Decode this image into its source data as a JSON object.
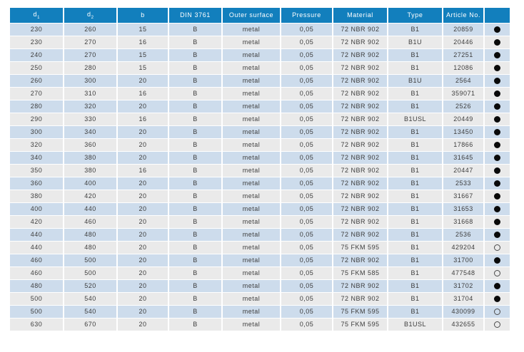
{
  "colors": {
    "header_bg": "#127fbd",
    "header_text": "#ffffff",
    "row_blue": "#cddcec",
    "row_gray": "#eaeaea",
    "cell_text": "#3d3d3d",
    "dot_color": "#0a0a0a"
  },
  "table": {
    "columns": [
      {
        "key": "d1",
        "label": "d",
        "sub": "1"
      },
      {
        "key": "d2",
        "label": "d",
        "sub": "2"
      },
      {
        "key": "b",
        "label": "b"
      },
      {
        "key": "din",
        "label": "DIN 3761"
      },
      {
        "key": "outer",
        "label": "Outer surface"
      },
      {
        "key": "pressure",
        "label": "Pressure"
      },
      {
        "key": "material",
        "label": "Material"
      },
      {
        "key": "type",
        "label": "Type"
      },
      {
        "key": "article",
        "label": "Article No."
      },
      {
        "key": "dot",
        "label": ""
      }
    ],
    "rows": [
      {
        "d1": "230",
        "d2": "260",
        "b": "15",
        "din": "B",
        "outer": "metal",
        "pressure": "0,05",
        "material": "72 NBR 902",
        "type": "B1",
        "article": "20859",
        "dot": "filled"
      },
      {
        "d1": "230",
        "d2": "270",
        "b": "16",
        "din": "B",
        "outer": "metal",
        "pressure": "0,05",
        "material": "72 NBR 902",
        "type": "B1U",
        "article": "20446",
        "dot": "filled"
      },
      {
        "d1": "240",
        "d2": "270",
        "b": "15",
        "din": "B",
        "outer": "metal",
        "pressure": "0,05",
        "material": "72 NBR 902",
        "type": "B1",
        "article": "27251",
        "dot": "filled"
      },
      {
        "d1": "250",
        "d2": "280",
        "b": "15",
        "din": "B",
        "outer": "metal",
        "pressure": "0,05",
        "material": "72 NBR 902",
        "type": "B1",
        "article": "12086",
        "dot": "filled"
      },
      {
        "d1": "260",
        "d2": "300",
        "b": "20",
        "din": "B",
        "outer": "metal",
        "pressure": "0,05",
        "material": "72 NBR 902",
        "type": "B1U",
        "article": "2564",
        "dot": "filled"
      },
      {
        "d1": "270",
        "d2": "310",
        "b": "16",
        "din": "B",
        "outer": "metal",
        "pressure": "0,05",
        "material": "72 NBR 902",
        "type": "B1",
        "article": "359071",
        "dot": "filled"
      },
      {
        "d1": "280",
        "d2": "320",
        "b": "20",
        "din": "B",
        "outer": "metal",
        "pressure": "0,05",
        "material": "72 NBR 902",
        "type": "B1",
        "article": "2526",
        "dot": "filled"
      },
      {
        "d1": "290",
        "d2": "330",
        "b": "16",
        "din": "B",
        "outer": "metal",
        "pressure": "0,05",
        "material": "72 NBR 902",
        "type": "B1USL",
        "article": "20449",
        "dot": "filled"
      },
      {
        "d1": "300",
        "d2": "340",
        "b": "20",
        "din": "B",
        "outer": "metal",
        "pressure": "0,05",
        "material": "72 NBR 902",
        "type": "B1",
        "article": "13450",
        "dot": "filled"
      },
      {
        "d1": "320",
        "d2": "360",
        "b": "20",
        "din": "B",
        "outer": "metal",
        "pressure": "0,05",
        "material": "72 NBR 902",
        "type": "B1",
        "article": "17866",
        "dot": "filled"
      },
      {
        "d1": "340",
        "d2": "380",
        "b": "20",
        "din": "B",
        "outer": "metal",
        "pressure": "0,05",
        "material": "72 NBR 902",
        "type": "B1",
        "article": "31645",
        "dot": "filled"
      },
      {
        "d1": "350",
        "d2": "380",
        "b": "16",
        "din": "B",
        "outer": "metal",
        "pressure": "0,05",
        "material": "72 NBR 902",
        "type": "B1",
        "article": "20447",
        "dot": "filled"
      },
      {
        "d1": "360",
        "d2": "400",
        "b": "20",
        "din": "B",
        "outer": "metal",
        "pressure": "0,05",
        "material": "72 NBR 902",
        "type": "B1",
        "article": "2533",
        "dot": "filled"
      },
      {
        "d1": "380",
        "d2": "420",
        "b": "20",
        "din": "B",
        "outer": "metal",
        "pressure": "0,05",
        "material": "72 NBR 902",
        "type": "B1",
        "article": "31667",
        "dot": "filled"
      },
      {
        "d1": "400",
        "d2": "440",
        "b": "20",
        "din": "B",
        "outer": "metal",
        "pressure": "0,05",
        "material": "72 NBR 902",
        "type": "B1",
        "article": "31653",
        "dot": "filled"
      },
      {
        "d1": "420",
        "d2": "460",
        "b": "20",
        "din": "B",
        "outer": "metal",
        "pressure": "0,05",
        "material": "72 NBR 902",
        "type": "B1",
        "article": "31668",
        "dot": "filled"
      },
      {
        "d1": "440",
        "d2": "480",
        "b": "20",
        "din": "B",
        "outer": "metal",
        "pressure": "0,05",
        "material": "72 NBR 902",
        "type": "B1",
        "article": "2536",
        "dot": "filled"
      },
      {
        "d1": "440",
        "d2": "480",
        "b": "20",
        "din": "B",
        "outer": "metal",
        "pressure": "0,05",
        "material": "75 FKM 595",
        "type": "B1",
        "article": "429204",
        "dot": "hollow"
      },
      {
        "d1": "460",
        "d2": "500",
        "b": "20",
        "din": "B",
        "outer": "metal",
        "pressure": "0,05",
        "material": "72 NBR 902",
        "type": "B1",
        "article": "31700",
        "dot": "filled"
      },
      {
        "d1": "460",
        "d2": "500",
        "b": "20",
        "din": "B",
        "outer": "metal",
        "pressure": "0,05",
        "material": "75 FKM 585",
        "type": "B1",
        "article": "477548",
        "dot": "hollow"
      },
      {
        "d1": "480",
        "d2": "520",
        "b": "20",
        "din": "B",
        "outer": "metal",
        "pressure": "0,05",
        "material": "72 NBR 902",
        "type": "B1",
        "article": "31702",
        "dot": "filled"
      },
      {
        "d1": "500",
        "d2": "540",
        "b": "20",
        "din": "B",
        "outer": "metal",
        "pressure": "0,05",
        "material": "72 NBR 902",
        "type": "B1",
        "article": "31704",
        "dot": "filled"
      },
      {
        "d1": "500",
        "d2": "540",
        "b": "20",
        "din": "B",
        "outer": "metal",
        "pressure": "0,05",
        "material": "75 FKM 595",
        "type": "B1",
        "article": "430099",
        "dot": "hollow"
      },
      {
        "d1": "630",
        "d2": "670",
        "b": "20",
        "din": "B",
        "outer": "metal",
        "pressure": "0,05",
        "material": "75 FKM 595",
        "type": "B1USL",
        "article": "432655",
        "dot": "hollow"
      }
    ]
  }
}
